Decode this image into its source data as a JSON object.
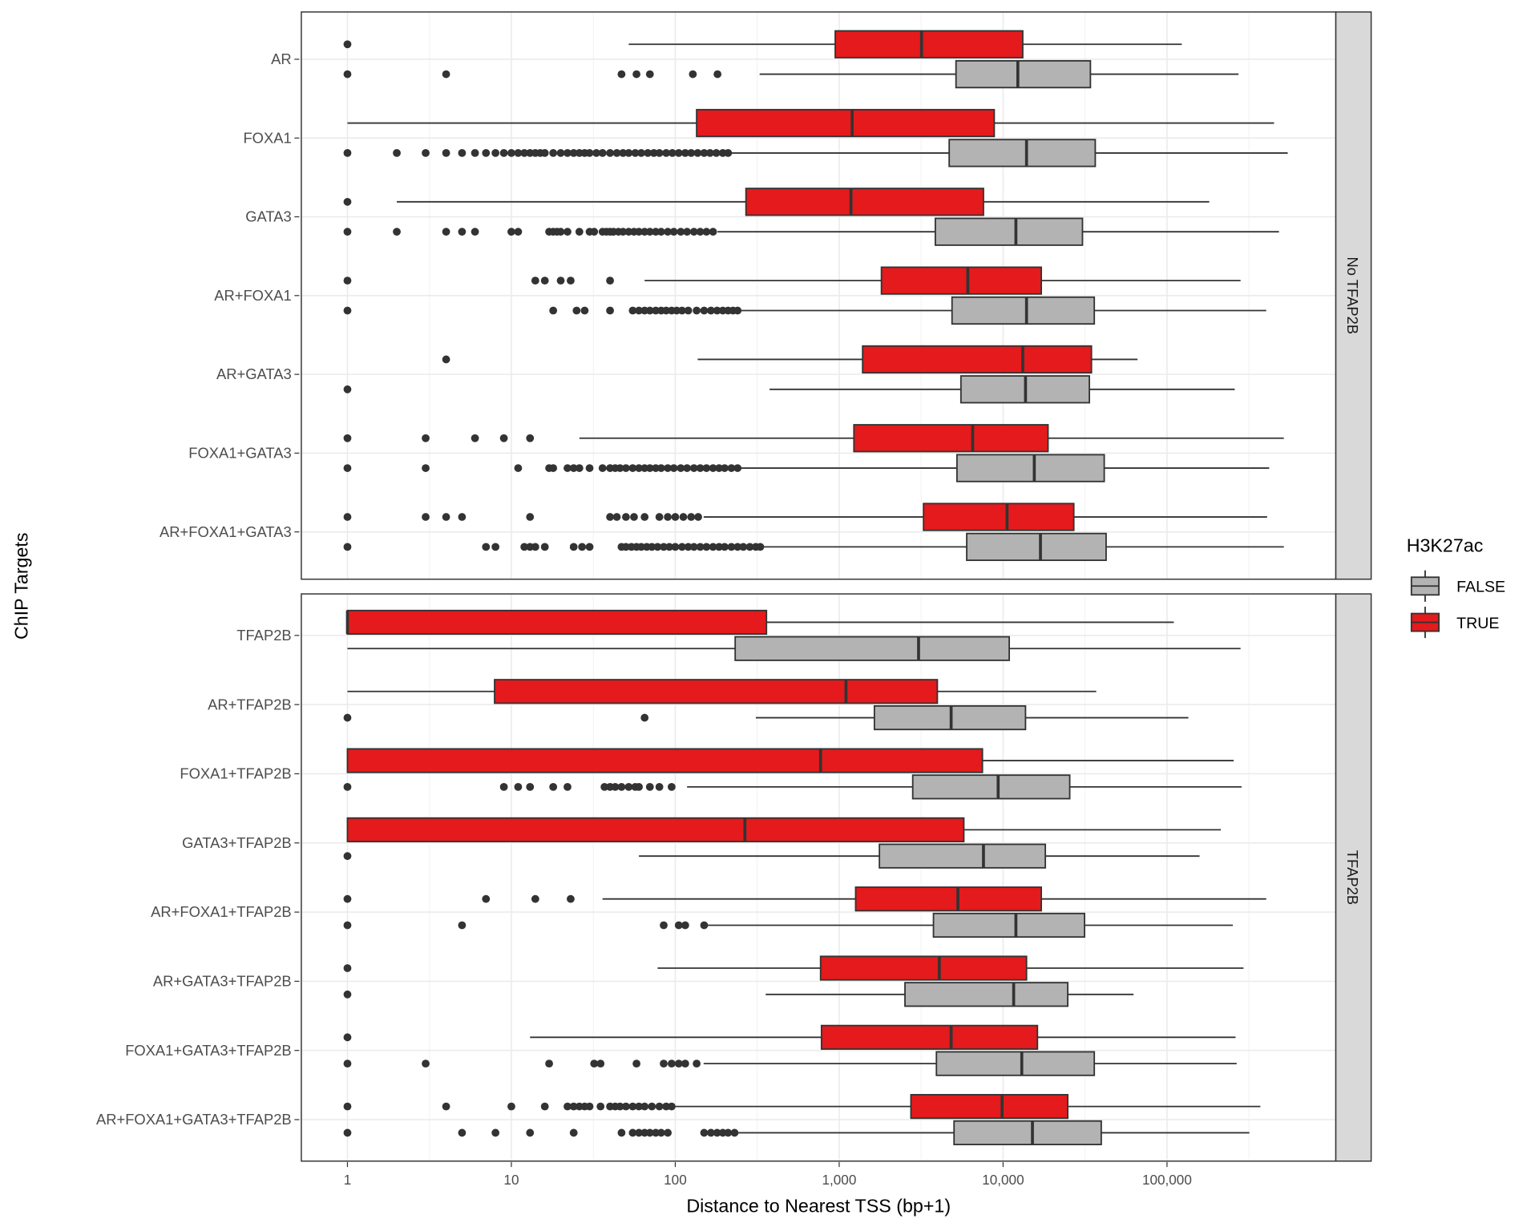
{
  "chart_data": {
    "type": "boxplot",
    "orientation": "horizontal",
    "xlabel": "Distance to Nearest TSS (bp+1)",
    "ylabel": "ChIP Targets",
    "x_scale": "log10",
    "xlim": [
      0.52,
      1070000
    ],
    "x_ticks": [
      1,
      10,
      100,
      1000,
      10000,
      100000
    ],
    "x_tick_labels": [
      "1",
      "10",
      "100",
      "1,000",
      "10,000",
      "100,000"
    ],
    "grid": true,
    "legend": {
      "title": "H3K27ac",
      "position": "right",
      "entries": [
        {
          "label": "FALSE",
          "color": "#B3B3B3"
        },
        {
          "label": "TRUE",
          "color": "#E41A1C"
        }
      ]
    },
    "facets": [
      {
        "label": "No TFAP2B",
        "categories": [
          {
            "name": "AR",
            "TRUE": {
              "stats": [
                52,
                946,
                3180,
                13180,
                123000
              ],
              "outliers": [
                1
              ]
            },
            "FALSE": {
              "stats": [
                327,
                5160,
                12300,
                34100,
                273000
              ],
              "outliers": [
                1,
                4,
                47,
                58,
                70,
                128,
                181
              ]
            }
          },
          {
            "name": "FOXA1",
            "TRUE": {
              "stats": [
                1,
                135,
                1200,
                8830,
                450000
              ],
              "outliers": []
            },
            "FALSE": {
              "stats": [
                220,
                4690,
                13900,
                36500,
                545000
              ],
              "outliers": [
                1,
                2,
                3,
                4,
                5,
                6,
                7,
                8,
                9,
                10,
                11,
                12,
                13,
                14,
                15,
                16,
                18,
                20,
                22,
                24,
                26,
                28,
                30,
                33,
                36,
                40,
                44,
                48,
                52,
                57,
                62,
                68,
                74,
                80,
                88,
                96,
                105,
                115,
                125,
                137,
                150,
                163,
                178,
                195,
                210
              ]
            }
          },
          {
            "name": "GATA3",
            "TRUE": {
              "stats": [
                2,
                270,
                1180,
                7590,
                181000
              ],
              "outliers": [
                1
              ]
            },
            "FALSE": {
              "stats": [
                181,
                3860,
                11970,
                30500,
                482000
              ],
              "outliers": [
                1,
                2,
                4,
                5,
                6,
                10,
                11,
                17,
                18,
                19,
                20,
                22,
                26,
                30,
                32,
                36,
                38,
                40,
                42,
                45,
                48,
                52,
                56,
                60,
                65,
                70,
                76,
                82,
                90,
                98,
                108,
                118,
                130,
                142,
                155,
                170
              ]
            }
          },
          {
            "name": "AR+FOXA1",
            "TRUE": {
              "stats": [
                65,
                1810,
                6090,
                17100,
                281000
              ],
              "outliers": [
                1,
                14,
                16,
                20,
                23,
                40
              ]
            },
            "FALSE": {
              "stats": [
                248,
                4880,
                13900,
                36000,
                403000
              ],
              "outliers": [
                1,
                18,
                25,
                28,
                40,
                55,
                60,
                65,
                70,
                76,
                82,
                88,
                95,
                102,
                110,
                120,
                135,
                150,
                165,
                180,
                195,
                210,
                225,
                240
              ]
            }
          },
          {
            "name": "AR+GATA3",
            "TRUE": {
              "stats": [
                137,
                1390,
                13180,
                34600,
                66100
              ],
              "outliers": [
                4
              ]
            },
            "FALSE": {
              "stats": [
                376,
                5530,
                13700,
                33600,
                259000
              ],
              "outliers": [
                1
              ]
            }
          },
          {
            "name": "FOXA1+GATA3",
            "TRUE": {
              "stats": [
                26,
                1230,
                6520,
                18800,
                516000
              ],
              "outliers": [
                1,
                3,
                6,
                9,
                13
              ]
            },
            "FALSE": {
              "stats": [
                245,
                5230,
                15500,
                41400,
                420000
              ],
              "outliers": [
                1,
                3,
                11,
                17,
                18,
                22,
                24,
                26,
                30,
                36,
                40,
                43,
                46,
                50,
                55,
                60,
                65,
                70,
                76,
                82,
                90,
                98,
                108,
                118,
                130,
                142,
                155,
                170,
                185,
                200,
                220,
                240
              ]
            }
          },
          {
            "name": "AR+FOXA1+GATA3",
            "TRUE": {
              "stats": [
                149,
                3270,
                10570,
                27000,
                408000
              ],
              "outliers": [
                1,
                3,
                4,
                5,
                13,
                40,
                44,
                50,
                56,
                65,
                80,
                90,
                100,
                112,
                125,
                138
              ]
            },
            "FALSE": {
              "stats": [
                337,
                6000,
                16900,
                42500,
                516000
              ],
              "outliers": [
                1,
                7,
                8,
                12,
                13,
                14,
                16,
                24,
                27,
                30,
                47,
                50,
                54,
                58,
                62,
                67,
                72,
                78,
                85,
                92,
                100,
                110,
                120,
                130,
                142,
                155,
                170,
                185,
                200,
                220,
                240,
                260,
                285,
                310,
                330
              ]
            }
          }
        ]
      },
      {
        "label": "TFAP2B",
        "categories": [
          {
            "name": "TFAP2B",
            "TRUE": {
              "stats": [
                1,
                1,
                1,
                360,
                110000
              ],
              "outliers": []
            },
            "FALSE": {
              "stats": [
                1,
                232,
                3050,
                10900,
                281000
              ],
              "outliers": []
            }
          },
          {
            "name": "AR+TFAP2B",
            "TRUE": {
              "stats": [
                1,
                7.9,
                1100,
                3970,
                37000
              ],
              "outliers": []
            },
            "FALSE": {
              "stats": [
                310,
                1640,
                4820,
                13700,
                135000
              ],
              "outliers": [
                1,
                65
              ]
            }
          },
          {
            "name": "FOXA1+TFAP2B",
            "TRUE": {
              "stats": [
                1,
                1,
                770,
                7480,
                255000
              ],
              "outliers": []
            },
            "FALSE": {
              "stats": [
                118,
                2810,
                9330,
                25500,
                285000
              ],
              "outliers": [
                1,
                9,
                11,
                13,
                18,
                22,
                37,
                40,
                43,
                47,
                52,
                57,
                60,
                70,
                80,
                95
              ]
            }
          },
          {
            "name": "GATA3+TFAP2B",
            "TRUE": {
              "stats": [
                1,
                1,
                266,
                5760,
                213000
              ],
              "outliers": []
            },
            "FALSE": {
              "stats": [
                60,
                1760,
                7590,
                18100,
                158000
              ],
              "outliers": [
                1
              ]
            }
          },
          {
            "name": "AR+FOXA1+TFAP2B",
            "TRUE": {
              "stats": [
                36,
                1260,
                5300,
                17100,
                403000
              ],
              "outliers": [
                1,
                7,
                14,
                23
              ]
            },
            "FALSE": {
              "stats": [
                149,
                3760,
                11970,
                31400,
                252000
              ],
              "outliers": [
                1,
                5,
                85,
                105,
                115,
                150
              ]
            }
          },
          {
            "name": "AR+GATA3+TFAP2B",
            "TRUE": {
              "stats": [
                78,
                770,
                4080,
                13900,
                293000
              ],
              "outliers": [
                1
              ]
            },
            "FALSE": {
              "stats": [
                356,
                2520,
                11600,
                24800,
                62500
              ],
              "outliers": [
                1
              ]
            }
          },
          {
            "name": "FOXA1+GATA3+TFAP2B",
            "TRUE": {
              "stats": [
                13,
                780,
                4820,
                16200,
                262000
              ],
              "outliers": [
                1
              ]
            },
            "FALSE": {
              "stats": [
                149,
                3920,
                13000,
                36000,
                266000
              ],
              "outliers": [
                1,
                3,
                17,
                32,
                35,
                58,
                85,
                95,
                105,
                115,
                135
              ]
            }
          },
          {
            "name": "AR+FOXA1+GATA3+TFAP2B",
            "TRUE": {
              "stats": [
                97,
                2740,
                9860,
                24800,
                371000
              ],
              "outliers": [
                1,
                4,
                10,
                16,
                22,
                24,
                26,
                28,
                30,
                35,
                40,
                43,
                46,
                50,
                55,
                60,
                65,
                72,
                80,
                88,
                95
              ]
            },
            "FALSE": {
              "stats": [
                238,
                5020,
                15100,
                39700,
                318000
              ],
              "outliers": [
                1,
                5,
                8,
                13,
                24,
                47,
                55,
                60,
                65,
                70,
                76,
                82,
                90,
                150,
                165,
                180,
                195,
                210,
                230
              ]
            }
          }
        ]
      }
    ]
  }
}
